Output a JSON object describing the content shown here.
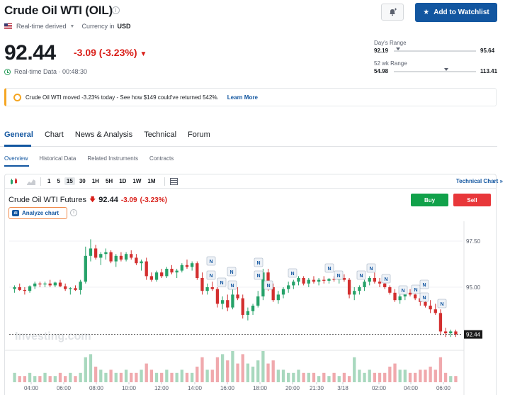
{
  "header": {
    "title": "Crude Oil WTI (OIL)",
    "realtime_label": "Real-time derived",
    "currency_label": "Currency in",
    "currency": "USD",
    "price": "92.44",
    "change": "-3.09 (-3.23%)",
    "realtime_data": "Real-time Data · 00:48:30",
    "watchlist_label": "Add to Watchlist"
  },
  "ranges": {
    "day_label": "Day's Range",
    "day_low": "92.19",
    "day_high": "95.64",
    "day_position": 0.05,
    "week52_label": "52 wk Range",
    "week52_low": "54.98",
    "week52_high": "113.41",
    "week52_position": 0.64
  },
  "banner": {
    "text": "Crude Oil WTI moved -3.23% today - See how $149 could've returned 542%.",
    "link": "Learn More"
  },
  "tabs": [
    "General",
    "Chart",
    "News & Analysis",
    "Technical",
    "Forum"
  ],
  "subtabs": [
    "Overview",
    "Historical Data",
    "Related Instruments",
    "Contracts"
  ],
  "toolbar": {
    "intervals": [
      "1",
      "5",
      "15",
      "30",
      "1H",
      "5H",
      "1D",
      "1W",
      "1M"
    ],
    "selected": "15",
    "technical_chart": "Technical Chart"
  },
  "futures": {
    "name": "Crude Oil WTI Futures",
    "price": "92.44",
    "change": "-3.09",
    "change_pct": "(-3.23%)",
    "buy": "Buy",
    "sell": "Sell",
    "analyze": "Analyze chart",
    "ai_badge": "AI"
  },
  "chart_data": {
    "type": "candlestick",
    "watermark": "Investing.com",
    "y_ticks": [
      "97.50",
      "95.00"
    ],
    "y_tick_values": [
      97.5,
      95.0
    ],
    "last_price": "92.44",
    "last_price_value": 92.44,
    "ylim": [
      92.0,
      98.0
    ],
    "x_ticks": [
      "04:00",
      "06:00",
      "08:00",
      "10:00",
      "12:00",
      "14:00",
      "16:00",
      "18:00",
      "20:00",
      "21:30",
      "3/18",
      "02:00",
      "04:00",
      "06:00"
    ],
    "news_marker": "N",
    "colors": {
      "up": "#26a269",
      "down": "#d32f2f",
      "vol_up": "#a8d8be",
      "vol_down": "#f0a9ad"
    },
    "candles": [
      [
        94.9,
        95.1,
        94.7,
        95.0
      ],
      [
        95.0,
        95.2,
        94.8,
        94.85
      ],
      [
        94.85,
        95.0,
        94.6,
        94.8
      ],
      [
        94.8,
        95.1,
        94.7,
        95.05
      ],
      [
        95.05,
        95.3,
        94.9,
        95.2
      ],
      [
        95.2,
        95.3,
        95.0,
        95.15
      ],
      [
        95.15,
        95.3,
        95.0,
        95.2
      ],
      [
        95.2,
        95.4,
        95.0,
        95.1
      ],
      [
        95.1,
        95.3,
        95.0,
        95.25
      ],
      [
        95.25,
        95.4,
        95.0,
        95.05
      ],
      [
        95.05,
        95.2,
        94.8,
        94.9
      ],
      [
        94.9,
        95.0,
        94.6,
        94.95
      ],
      [
        94.95,
        95.1,
        94.8,
        94.85
      ],
      [
        94.85,
        95.4,
        94.6,
        95.3
      ],
      [
        95.3,
        97.2,
        95.2,
        96.7
      ],
      [
        96.7,
        97.6,
        96.4,
        97.1
      ],
      [
        97.1,
        97.3,
        96.5,
        96.6
      ],
      [
        96.6,
        96.9,
        96.2,
        96.8
      ],
      [
        96.8,
        97.1,
        96.5,
        96.9
      ],
      [
        96.9,
        97.0,
        96.3,
        96.4
      ],
      [
        96.4,
        96.8,
        96.1,
        96.7
      ],
      [
        96.7,
        96.9,
        96.4,
        96.5
      ],
      [
        96.5,
        96.9,
        96.4,
        96.8
      ],
      [
        96.8,
        97.0,
        96.5,
        96.6
      ],
      [
        96.6,
        96.8,
        96.2,
        96.3
      ],
      [
        96.3,
        96.5,
        95.9,
        96.4
      ],
      [
        96.4,
        96.6,
        95.4,
        95.6
      ],
      [
        95.6,
        95.8,
        95.3,
        95.4
      ],
      [
        95.4,
        95.9,
        95.3,
        95.8
      ],
      [
        95.8,
        96.0,
        95.5,
        95.6
      ],
      [
        95.6,
        96.1,
        95.5,
        96.0
      ],
      [
        96.0,
        96.2,
        95.7,
        95.8
      ],
      [
        95.8,
        96.0,
        95.5,
        95.9
      ],
      [
        95.9,
        96.3,
        95.8,
        96.2
      ],
      [
        96.2,
        96.5,
        96.0,
        96.1
      ],
      [
        96.1,
        96.4,
        95.9,
        96.3
      ],
      [
        96.3,
        96.4,
        95.4,
        95.5
      ],
      [
        95.5,
        95.8,
        94.6,
        94.8
      ],
      [
        94.8,
        95.2,
        94.6,
        95.0
      ],
      [
        95.0,
        95.3,
        94.8,
        94.9
      ],
      [
        94.9,
        95.0,
        93.9,
        94.1
      ],
      [
        94.1,
        94.5,
        93.8,
        94.3
      ],
      [
        94.3,
        94.6,
        93.7,
        93.9
      ],
      [
        93.9,
        94.9,
        93.8,
        94.6
      ],
      [
        94.6,
        95.0,
        94.3,
        94.4
      ],
      [
        94.4,
        94.6,
        93.3,
        93.5
      ],
      [
        93.5,
        93.9,
        93.2,
        93.7
      ],
      [
        93.7,
        94.1,
        93.5,
        94.0
      ],
      [
        94.0,
        94.8,
        93.9,
        94.5
      ],
      [
        94.5,
        96.0,
        94.3,
        95.8
      ],
      [
        95.8,
        96.0,
        94.8,
        95.0
      ],
      [
        95.0,
        95.2,
        94.2,
        94.3
      ],
      [
        94.3,
        94.8,
        94.1,
        94.6
      ],
      [
        94.6,
        95.0,
        94.4,
        94.9
      ],
      [
        94.9,
        95.3,
        94.7,
        95.1
      ],
      [
        95.1,
        95.4,
        94.9,
        95.3
      ],
      [
        95.3,
        95.6,
        95.1,
        95.5
      ],
      [
        95.5,
        95.6,
        95.1,
        95.2
      ],
      [
        95.2,
        95.5,
        95.0,
        95.4
      ],
      [
        95.4,
        95.6,
        95.2,
        95.3
      ],
      [
        95.3,
        95.5,
        95.1,
        95.4
      ],
      [
        95.4,
        95.6,
        95.2,
        95.35
      ],
      [
        95.35,
        95.5,
        95.2,
        95.45
      ],
      [
        95.45,
        95.6,
        95.3,
        95.4
      ],
      [
        95.4,
        95.6,
        95.2,
        95.5
      ],
      [
        95.5,
        95.7,
        95.3,
        95.4
      ],
      [
        95.4,
        95.5,
        94.4,
        94.6
      ],
      [
        94.6,
        95.0,
        94.3,
        94.8
      ],
      [
        94.8,
        95.1,
        94.6,
        95.0
      ],
      [
        95.0,
        95.4,
        94.8,
        95.3
      ],
      [
        95.3,
        95.6,
        95.1,
        95.5
      ],
      [
        95.5,
        95.8,
        95.2,
        95.3
      ],
      [
        95.3,
        95.5,
        95.0,
        95.2
      ],
      [
        95.2,
        95.3,
        94.9,
        95.0
      ],
      [
        95.0,
        95.1,
        94.6,
        94.7
      ],
      [
        94.7,
        94.9,
        94.2,
        94.3
      ],
      [
        94.3,
        94.6,
        94.1,
        94.5
      ],
      [
        94.5,
        94.8,
        94.3,
        94.7
      ],
      [
        94.7,
        94.9,
        94.5,
        94.6
      ],
      [
        94.6,
        94.8,
        94.3,
        94.4
      ],
      [
        94.4,
        94.6,
        94.0,
        94.2
      ],
      [
        94.2,
        94.4,
        93.9,
        94.0
      ],
      [
        94.0,
        94.3,
        93.6,
        93.8
      ],
      [
        93.8,
        94.1,
        93.5,
        93.6
      ],
      [
        93.6,
        93.8,
        92.4,
        92.6
      ],
      [
        92.6,
        92.8,
        92.3,
        92.5
      ],
      [
        92.5,
        92.7,
        92.3,
        92.6
      ],
      [
        92.6,
        92.7,
        92.3,
        92.44
      ]
    ],
    "volumes": [
      3,
      2,
      2,
      3,
      2,
      2,
      3,
      2,
      2,
      3,
      2,
      3,
      2,
      3,
      8,
      9,
      5,
      4,
      3,
      4,
      3,
      3,
      4,
      3,
      3,
      4,
      6,
      4,
      3,
      3,
      4,
      3,
      3,
      4,
      3,
      3,
      5,
      8,
      4,
      4,
      8,
      9,
      7,
      10,
      6,
      9,
      6,
      5,
      7,
      10,
      6,
      7,
      4,
      4,
      3,
      3,
      4,
      3,
      3,
      3,
      2,
      3,
      2,
      3,
      2,
      3,
      2,
      8,
      4,
      3,
      4,
      3,
      3,
      3,
      5,
      6,
      4,
      4,
      3,
      3,
      4,
      4,
      5,
      4,
      8,
      3,
      2,
      2
    ]
  }
}
